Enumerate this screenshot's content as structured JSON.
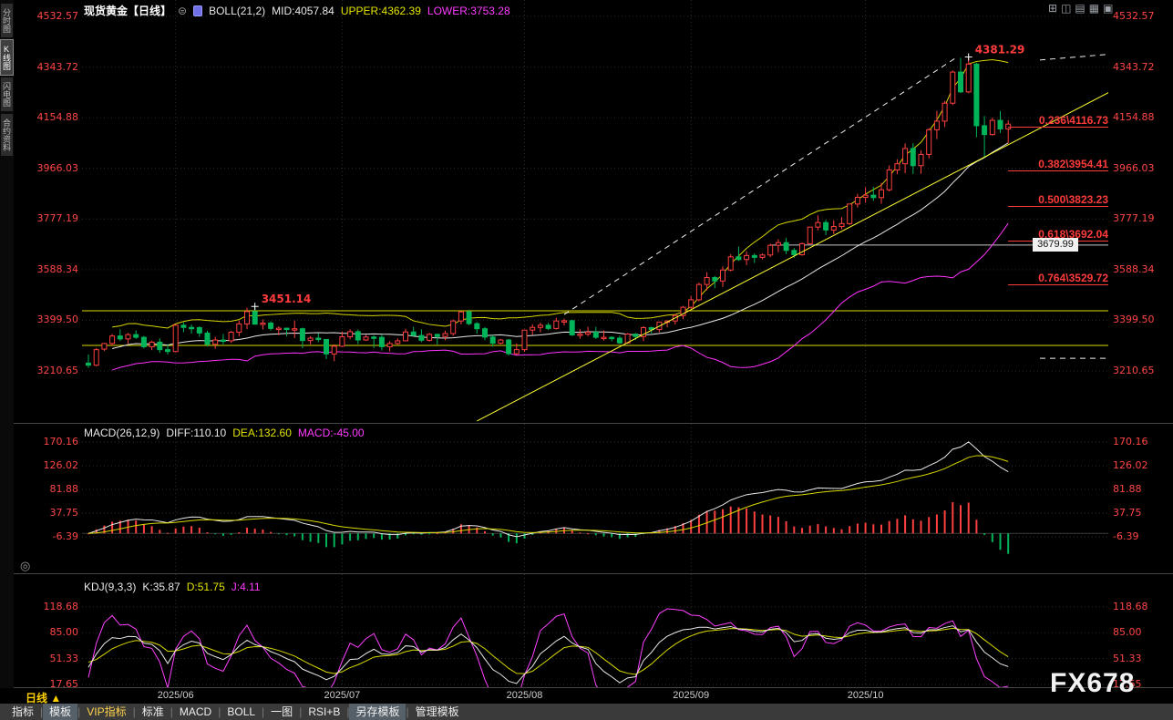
{
  "header": {
    "symbol_title": "现货黄金【日线】",
    "compare_icon": "⊜",
    "boll": "BOLL(21,2)",
    "mid": "MID:4057.84",
    "upper": "UPPER:4362.39",
    "lower": "LOWER:3753.28"
  },
  "icons": {
    "target": "◎"
  },
  "window_icons": [
    {
      "name": "layout-grid4-icon",
      "glyph": "⊞"
    },
    {
      "name": "layout-split2-icon",
      "glyph": "◫"
    },
    {
      "name": "layout-rows-icon",
      "glyph": "▤"
    },
    {
      "name": "layout-grid9-icon",
      "glyph": "▦"
    },
    {
      "name": "layout-single-icon",
      "glyph": "▣"
    }
  ],
  "sidebar": {
    "items": [
      {
        "label": "分时图",
        "selected": false
      },
      {
        "label": "K线图",
        "selected": true
      },
      {
        "label": "闪电图",
        "selected": false
      },
      {
        "label": "合约资料",
        "selected": false
      }
    ]
  },
  "macd": {
    "title": "MACD(26,12,9)",
    "diff": "DIFF:110.10",
    "dea": "DEA:132.60",
    "macd": "MACD:-45.00",
    "ticks": [
      "170.16",
      "126.02",
      "81.88",
      "37.75",
      "-6.39"
    ]
  },
  "kdj": {
    "title": "KDJ(9,3,3)",
    "k": "K:35.87",
    "d": "D:51.75",
    "j": "J:4.11",
    "ticks": [
      "118.68",
      "85.00",
      "51.33",
      "17.65"
    ]
  },
  "bottom": {
    "period": {
      "label": "日线",
      "arrow": "▲"
    },
    "toolbar": [
      {
        "label": "指标",
        "selected": false
      },
      {
        "label": "模板",
        "selected": true
      },
      {
        "label": "VIP指标",
        "selected": false,
        "vip": true
      },
      {
        "label": "标准",
        "selected": false
      },
      {
        "label": "MACD",
        "selected": false
      },
      {
        "label": "BOLL",
        "selected": false
      },
      {
        "label": "一图",
        "selected": false
      },
      {
        "label": "RSI+B",
        "selected": false
      },
      {
        "label": "另存模板",
        "selected": true
      },
      {
        "label": "管理模板",
        "selected": false
      }
    ]
  },
  "watermark": "FX678",
  "chart_data": {
    "type": "candlestick",
    "title": "现货黄金【日线】",
    "colors": {
      "up": "#ff4040",
      "down": "#00b45a",
      "grid": "#2e2e2e",
      "boll_mid": "#e8e8e8",
      "boll_upper": "#d6d600",
      "boll_lower": "#ff33ff",
      "line_white": "#e8e8e8",
      "line_yellow": "#d8d800",
      "line_magenta": "#ff40ff",
      "annotation": "#ff3b3b",
      "axis": "#ff4545"
    },
    "y_ticks": [
      "4532.57",
      "4343.72",
      "4154.88",
      "3966.03",
      "3777.19",
      "3588.34",
      "3399.50",
      "3210.65"
    ],
    "x_ticks": [
      {
        "label": "2025/06",
        "index": 11
      },
      {
        "label": "2025/07",
        "index": 32
      },
      {
        "label": "2025/08",
        "index": 55
      },
      {
        "label": "2025/09",
        "index": 76
      },
      {
        "label": "2025/10",
        "index": 98
      }
    ],
    "annotations": [
      {
        "text": "3451.14",
        "index": 21,
        "price": 3451.14
      },
      {
        "text": "4381.29",
        "index": 111,
        "price": 4381.29
      }
    ],
    "fib_levels": [
      {
        "label": "0.236\\4116.73",
        "price": 4116.73
      },
      {
        "label": "0.382\\3954.41",
        "price": 3954.41
      },
      {
        "label": "0.500\\3823.23",
        "price": 3823.23
      },
      {
        "label": "0.618\\3692.04",
        "price": 3692.04
      },
      {
        "label": "0.764\\3529.72",
        "price": 3529.72
      }
    ],
    "price_marker": {
      "label": "3679.99",
      "price": 3679.99
    },
    "drawings": [
      {
        "name": "horizontal-line-upper",
        "color": "#dcdc00",
        "layer": "under",
        "full": true,
        "price": 3435
      },
      {
        "name": "horizontal-line-lower",
        "color": "#dcdc00",
        "layer": "under",
        "full": true,
        "price": 3306
      },
      {
        "name": "gray-price-line",
        "color": "#c8c8c8",
        "layer": "under",
        "price": 3679.99,
        "i1": 86,
        "i2": 129
      },
      {
        "name": "yellow-trendline",
        "color": "#ffff33",
        "layer": "over",
        "i1": 49,
        "p1": 3024,
        "i2": 129,
        "p2": 4254
      },
      {
        "name": "dashed-trendline",
        "color": "#f0f0f0",
        "dash": "6 5",
        "layer": "over",
        "i1": 60,
        "p1": 3421,
        "i2": 109.5,
        "p2": 4380
      },
      {
        "name": "dashed-top-segment",
        "color": "#f0f0f0",
        "dash": "6 5",
        "layer": "over",
        "i1": 120,
        "p1": 4370,
        "i2": 129,
        "p2": 4392
      },
      {
        "name": "dashed-bottom-segment",
        "color": "#f0f0f0",
        "dash": "6 5",
        "layer": "over",
        "i1": 120,
        "p1": 3258,
        "i2": 128.5,
        "p2": 3258
      }
    ],
    "candles": [
      [
        3240,
        3272,
        3222,
        3232
      ],
      [
        3232,
        3296,
        3228,
        3290
      ],
      [
        3292,
        3315,
        3285,
        3313
      ],
      [
        3313,
        3348,
        3305,
        3341
      ],
      [
        3341,
        3366,
        3322,
        3330
      ],
      [
        3330,
        3352,
        3312,
        3346
      ],
      [
        3346,
        3362,
        3330,
        3336
      ],
      [
        3336,
        3341,
        3294,
        3301
      ],
      [
        3301,
        3324,
        3288,
        3318
      ],
      [
        3318,
        3332,
        3278,
        3290
      ],
      [
        3290,
        3310,
        3272,
        3283
      ],
      [
        3283,
        3385,
        3280,
        3381
      ],
      [
        3381,
        3392,
        3355,
        3373
      ],
      [
        3373,
        3384,
        3350,
        3372
      ],
      [
        3372,
        3378,
        3338,
        3352
      ],
      [
        3352,
        3360,
        3302,
        3310
      ],
      [
        3310,
        3338,
        3293,
        3326
      ],
      [
        3326,
        3348,
        3310,
        3323
      ],
      [
        3323,
        3360,
        3315,
        3355
      ],
      [
        3355,
        3398,
        3340,
        3386
      ],
      [
        3386,
        3446,
        3366,
        3432
      ],
      [
        3432,
        3451.14,
        3383,
        3385
      ],
      [
        3385,
        3403,
        3365,
        3389
      ],
      [
        3389,
        3396,
        3361,
        3369
      ],
      [
        3369,
        3377,
        3344,
        3370
      ],
      [
        3370,
        3372,
        3340,
        3368
      ],
      [
        3368,
        3398,
        3333,
        3368
      ],
      [
        3368,
        3372,
        3295,
        3324
      ],
      [
        3324,
        3340,
        3310,
        3333
      ],
      [
        3333,
        3350,
        3318,
        3328
      ],
      [
        3328,
        3330,
        3255,
        3274
      ],
      [
        3274,
        3310,
        3247,
        3303
      ],
      [
        3303,
        3358,
        3300,
        3338
      ],
      [
        3338,
        3366,
        3328,
        3357
      ],
      [
        3357,
        3365,
        3311,
        3326
      ],
      [
        3326,
        3345,
        3323,
        3337
      ],
      [
        3337,
        3343,
        3296,
        3336
      ],
      [
        3336,
        3346,
        3287,
        3301
      ],
      [
        3301,
        3322,
        3283,
        3313
      ],
      [
        3313,
        3332,
        3309,
        3323
      ],
      [
        3323,
        3368,
        3322,
        3356
      ],
      [
        3356,
        3375,
        3340,
        3343
      ],
      [
        3343,
        3366,
        3318,
        3325
      ],
      [
        3325,
        3352,
        3320,
        3347
      ],
      [
        3347,
        3349,
        3309,
        3339
      ],
      [
        3339,
        3361,
        3325,
        3350
      ],
      [
        3350,
        3402,
        3341,
        3397
      ],
      [
        3397,
        3433,
        3384,
        3431
      ],
      [
        3431,
        3439,
        3381,
        3387
      ],
      [
        3387,
        3393,
        3350,
        3368
      ],
      [
        3368,
        3374,
        3325,
        3337
      ],
      [
        3337,
        3345,
        3301,
        3314
      ],
      [
        3314,
        3330,
        3310,
        3326
      ],
      [
        3326,
        3330,
        3268,
        3275
      ],
      [
        3275,
        3313,
        3270,
        3290
      ],
      [
        3290,
        3364,
        3282,
        3363
      ],
      [
        3363,
        3385,
        3345,
        3373
      ],
      [
        3373,
        3391,
        3355,
        3381
      ],
      [
        3381,
        3390,
        3362,
        3369
      ],
      [
        3369,
        3409,
        3365,
        3397
      ],
      [
        3397,
        3406,
        3380,
        3398
      ],
      [
        3398,
        3402,
        3341,
        3345
      ],
      [
        3345,
        3366,
        3331,
        3348
      ],
      [
        3348,
        3375,
        3340,
        3355
      ],
      [
        3355,
        3375,
        3330,
        3336
      ],
      [
        3336,
        3362,
        3324,
        3336
      ],
      [
        3336,
        3340,
        3321,
        3333
      ],
      [
        3333,
        3342,
        3311,
        3315
      ],
      [
        3315,
        3352,
        3312,
        3348
      ],
      [
        3348,
        3352,
        3325,
        3339
      ],
      [
        3339,
        3378,
        3322,
        3372
      ],
      [
        3372,
        3376,
        3350,
        3365
      ],
      [
        3365,
        3394,
        3355,
        3393
      ],
      [
        3393,
        3400,
        3373,
        3397
      ],
      [
        3397,
        3423,
        3384,
        3417
      ],
      [
        3417,
        3453,
        3404,
        3448
      ],
      [
        3448,
        3490,
        3442,
        3476
      ],
      [
        3476,
        3540,
        3470,
        3533
      ],
      [
        3533,
        3579,
        3511,
        3559
      ],
      [
        3559,
        3564,
        3519,
        3546
      ],
      [
        3546,
        3600,
        3524,
        3587
      ],
      [
        3587,
        3646,
        3582,
        3636
      ],
      [
        3636,
        3674,
        3621,
        3626
      ],
      [
        3626,
        3657,
        3605,
        3641
      ],
      [
        3641,
        3649,
        3613,
        3634
      ],
      [
        3634,
        3649,
        3627,
        3643
      ],
      [
        3643,
        3685,
        3635,
        3679
      ],
      [
        3679,
        3702,
        3653,
        3689
      ],
      [
        3689,
        3707,
        3646,
        3660
      ],
      [
        3660,
        3669,
        3632,
        3644
      ],
      [
        3644,
        3690,
        3640,
        3685
      ],
      [
        3685,
        3748,
        3683,
        3747
      ],
      [
        3747,
        3791,
        3735,
        3764
      ],
      [
        3764,
        3774,
        3717,
        3736
      ],
      [
        3736,
        3772,
        3721,
        3749
      ],
      [
        3749,
        3784,
        3739,
        3760
      ],
      [
        3760,
        3833,
        3755,
        3833
      ],
      [
        3833,
        3871,
        3820,
        3858
      ],
      [
        3858,
        3895,
        3838,
        3866
      ],
      [
        3866,
        3897,
        3845,
        3857
      ],
      [
        3857,
        3912,
        3834,
        3886
      ],
      [
        3886,
        3977,
        3880,
        3960
      ],
      [
        3960,
        4000,
        3944,
        3983
      ],
      [
        3983,
        4059,
        3948,
        4040
      ],
      [
        4040,
        4059,
        3945,
        3976
      ],
      [
        3976,
        4033,
        3946,
        4018
      ],
      [
        4018,
        4116,
        4003,
        4110
      ],
      [
        4110,
        4180,
        4075,
        4142
      ],
      [
        4142,
        4218,
        4120,
        4209
      ],
      [
        4209,
        4331,
        4202,
        4325
      ],
      [
        4325,
        4378,
        4247,
        4251
      ],
      [
        4251,
        4381.29,
        4246,
        4355
      ],
      [
        4355,
        4360,
        4082,
        4125
      ],
      [
        4125,
        4161,
        4004,
        4092
      ],
      [
        4092,
        4155,
        4088,
        4145
      ],
      [
        4145,
        4180,
        4098,
        4113
      ],
      [
        4113,
        4146,
        4060,
        4131
      ]
    ]
  }
}
